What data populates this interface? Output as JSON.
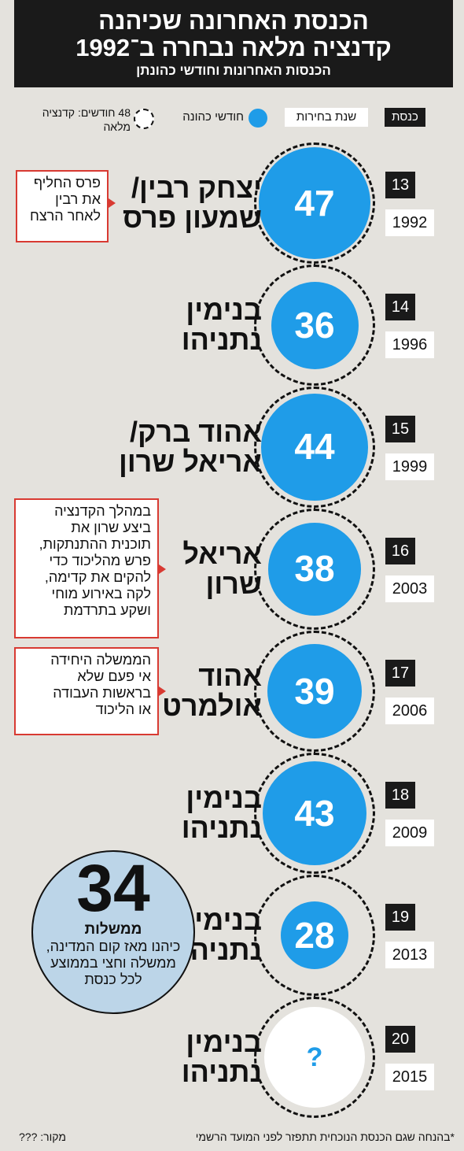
{
  "header": {
    "title_line1": "הכנסת האחרונה שכיהנה",
    "title_line2": "קדנציה מלאה נבחרה ב־1992",
    "subtitle": "הכנסות האחרונות וחודשי כהונתן"
  },
  "legend": {
    "knesset": "כנסת",
    "election_year": "שנת בחירות",
    "months_served": "חודשי כהונה",
    "full_term": "48 חודשים: קדנציה מלאה"
  },
  "colors": {
    "blue": "#1f9ce8",
    "red": "#d83a32",
    "dark": "#1a1a1a",
    "stat_bg": "#bcd5e8"
  },
  "chart_data": {
    "type": "bar",
    "full_term_months": 48,
    "categories": [
      "13",
      "14",
      "15",
      "16",
      "17",
      "18",
      "19",
      "20"
    ],
    "rows": [
      {
        "knesset": "13",
        "year": "1992",
        "pm": [
          "יצחק רבין/",
          "שמעון פרס"
        ],
        "months": 47,
        "label": "47"
      },
      {
        "knesset": "14",
        "year": "1996",
        "pm": [
          "בנימין",
          "נתניהו"
        ],
        "months": 36,
        "label": "36"
      },
      {
        "knesset": "15",
        "year": "1999",
        "pm": [
          "אהוד ברק/",
          "אריאל שרון"
        ],
        "months": 44,
        "label": "44"
      },
      {
        "knesset": "16",
        "year": "2003",
        "pm": [
          "אריאל",
          "שרון"
        ],
        "months": 38,
        "label": "38"
      },
      {
        "knesset": "17",
        "year": "2006",
        "pm": [
          "אהוד",
          "אולמרט"
        ],
        "months": 39,
        "label": "39"
      },
      {
        "knesset": "18",
        "year": "2009",
        "pm": [
          "בנימין",
          "נתניהו"
        ],
        "months": 43,
        "label": "43"
      },
      {
        "knesset": "19",
        "year": "2013",
        "pm": [
          "בנימין",
          "נתניהו"
        ],
        "months": 28,
        "label": "28"
      },
      {
        "knesset": "20",
        "year": "2015",
        "pm": [
          "בנימין",
          "נתניהו"
        ],
        "months": null,
        "label": "?"
      }
    ],
    "annotations": [
      {
        "row": 0,
        "lines": [
          "פרס החליף",
          "את רבין",
          "לאחר הרצח"
        ]
      },
      {
        "row": 3,
        "lines": [
          "במהלך הקדנציה",
          "ביצע שרון את",
          "תוכנית ההתנתקות,",
          "פרש מהליכוד כדי",
          "להקים את קדימה,",
          "לקה באירוע מוחי",
          "ושקע בתרדמת"
        ]
      },
      {
        "row": 4,
        "lines": [
          "הממשלה היחידה",
          "אי פעם שלא",
          "בראשות העבודה",
          "או הליכוד"
        ]
      }
    ]
  },
  "stat": {
    "number": "34",
    "unit": "ממשלות",
    "description": "כיהנו מאז קום המדינה, ממשלה וחצי בממוצע לכל כנסת"
  },
  "footnote": "*בהנחה שגם הכנסת הנוכחית תתפזר לפני המועד הרשמי",
  "source": "מקור: ???"
}
